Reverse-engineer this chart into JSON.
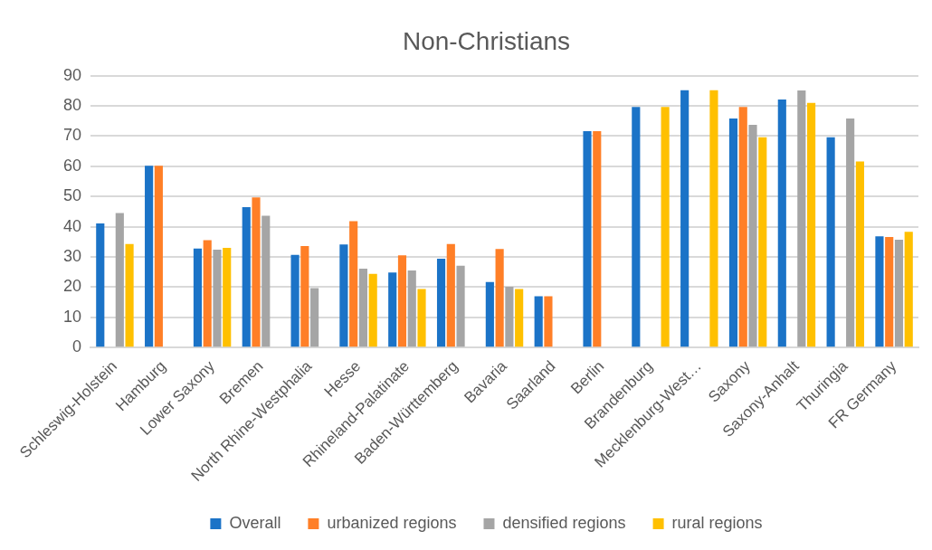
{
  "chart_data": {
    "type": "bar",
    "title": "Non-Christians",
    "categories": [
      "Schleswig-Holstein",
      "Hamburg",
      "Lower Saxony",
      "Bremen",
      "North Rhine-Westphalia",
      "Hesse",
      "Rhineland-Palatinate",
      "Baden-Württemberg",
      "Bavaria",
      "Saarland",
      "Berlin",
      "Brandenburg",
      "Mecklenburg-West…",
      "Saxony",
      "Saxony-Anhalt",
      "Thuringia",
      "FR Germany"
    ],
    "series": [
      {
        "name": "Overall",
        "color": "#1b73c7",
        "values": [
          41.1,
          60.2,
          32.8,
          46.5,
          30.7,
          34.1,
          24.8,
          29.4,
          21.7,
          17.0,
          71.6,
          79.6,
          85.2,
          75.8,
          82.1,
          69.6,
          36.8
        ]
      },
      {
        "name": "urbanized regions",
        "color": "#ff7f27",
        "values": [
          null,
          60.2,
          35.5,
          49.7,
          33.6,
          41.8,
          30.5,
          34.3,
          32.6,
          17.0,
          71.6,
          null,
          null,
          79.6,
          null,
          null,
          36.6
        ]
      },
      {
        "name": "densified regions",
        "color": "#a5a5a5",
        "values": [
          44.5,
          null,
          32.4,
          43.6,
          19.7,
          26.1,
          25.5,
          27.1,
          20.1,
          null,
          null,
          null,
          null,
          73.7,
          85.1,
          75.8,
          35.7
        ]
      },
      {
        "name": "rural regions",
        "color": "#ffc000",
        "values": [
          34.3,
          null,
          33.0,
          null,
          null,
          24.4,
          19.4,
          null,
          19.4,
          null,
          null,
          79.6,
          85.2,
          69.6,
          81.0,
          61.6,
          38.3
        ]
      }
    ],
    "ylim": [
      0,
      90
    ],
    "yticks": [
      0,
      10,
      20,
      30,
      40,
      50,
      60,
      70,
      80,
      90
    ],
    "grid": "y",
    "legend": "bottom"
  }
}
